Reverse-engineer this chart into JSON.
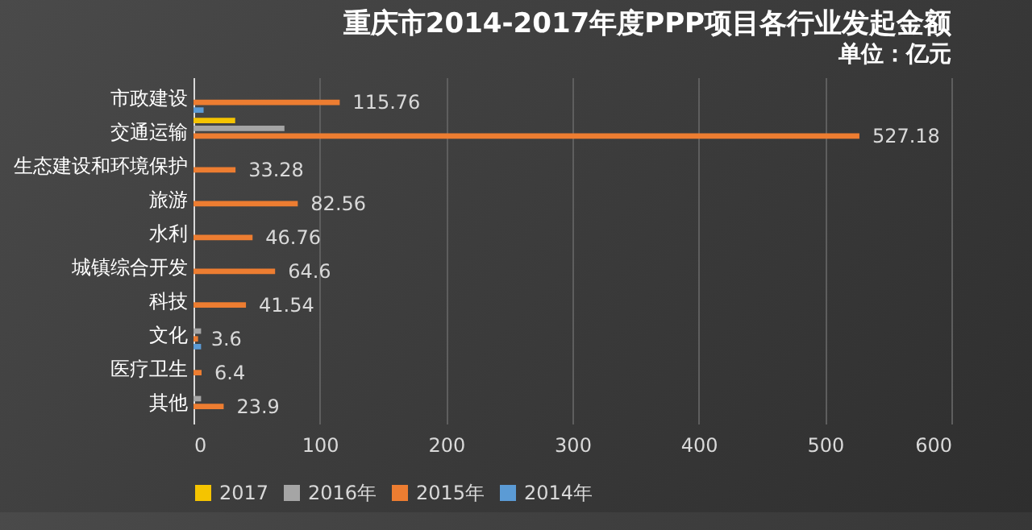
{
  "chart_data": {
    "type": "bar",
    "orientation": "horizontal",
    "title": "重庆市2014-2017年度PPP项目各行业发起金额",
    "subtitle": "单位：亿元",
    "categories": [
      "市政建设",
      "交通运输",
      "生态建设和环境保护",
      "旅游",
      "水利",
      "城镇综合开发",
      "科技",
      "文化",
      "医疗卫生",
      "其他"
    ],
    "series": [
      {
        "name": "2017",
        "color": "#f5c400",
        "values": [
          null,
          33,
          null,
          null,
          null,
          null,
          null,
          null,
          null,
          null
        ]
      },
      {
        "name": "2016年",
        "color": "#a5a5a5",
        "values": [
          null,
          72,
          null,
          null,
          null,
          null,
          null,
          6,
          null,
          6
        ]
      },
      {
        "name": "2015年",
        "color": "#ed7d31",
        "values": [
          115.76,
          527.18,
          33.28,
          82.56,
          46.76,
          64.6,
          41.54,
          3.6,
          6.4,
          23.9
        ],
        "value_labels": [
          "115.76",
          "527.18",
          "33.28",
          "82.56",
          "46.76",
          "64.6",
          "41.54",
          "3.6",
          "6.4",
          "23.9"
        ]
      },
      {
        "name": "2014年",
        "color": "#5b9bd5",
        "values": [
          8,
          null,
          null,
          null,
          null,
          null,
          null,
          6,
          null,
          null
        ]
      }
    ],
    "xlim": [
      0,
      600
    ],
    "xticks": [
      0,
      100,
      200,
      300,
      400,
      500,
      600
    ],
    "grid": "x",
    "legend": "bottom"
  }
}
